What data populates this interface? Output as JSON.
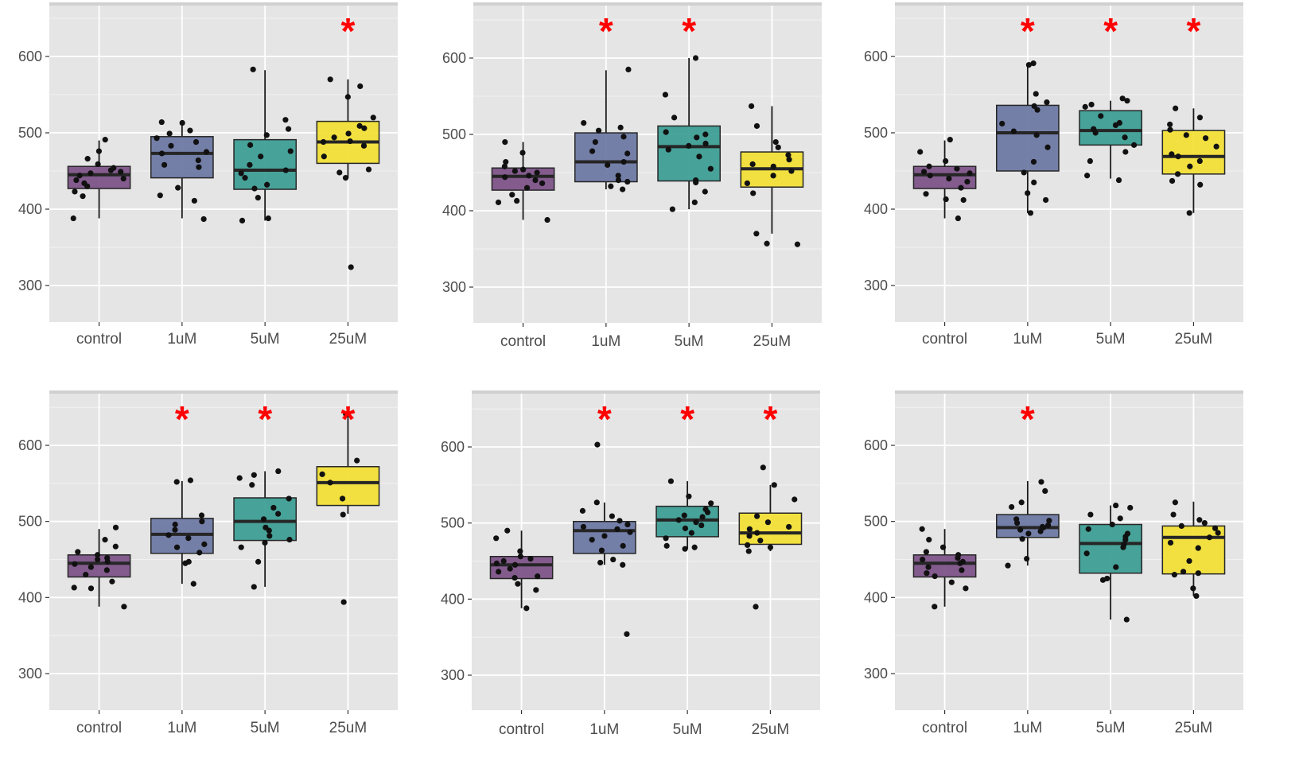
{
  "figure": {
    "colors": {
      "control": "#7b4f85",
      "1uM": "#6a76a3",
      "5uM": "#3a9c92",
      "25uM": "#f2e032",
      "star": "#ff0000",
      "panel_bg": "#e5e5e5",
      "grid": "#ffffff",
      "strip": "#d0d0d0"
    },
    "star_symbol": "*"
  },
  "chart_data": [
    {
      "type": "box",
      "categories": [
        "control",
        "1uM",
        "5uM",
        "25uM"
      ],
      "ylim": [
        255,
        665
      ],
      "yticks": [
        300,
        400,
        500,
        600
      ],
      "boxes": [
        {
          "q1": 427,
          "median": 445,
          "q3": 456,
          "wlo": 388,
          "whi": 490
        },
        {
          "q1": 441,
          "median": 473,
          "q3": 495,
          "wlo": 388,
          "whi": 514
        },
        {
          "q1": 426,
          "median": 451,
          "q3": 491,
          "wlo": 385,
          "whi": 582
        },
        {
          "q1": 460,
          "median": 488,
          "q3": 515,
          "wlo": 441,
          "whi": 570
        }
      ],
      "points": [
        [
          388,
          417,
          423,
          430,
          434,
          438,
          440,
          444,
          447,
          449,
          451,
          454,
          459,
          466,
          476,
          491
        ],
        [
          387,
          411,
          418,
          428,
          455,
          458,
          464,
          473,
          475,
          483,
          488,
          493,
          499,
          503,
          513,
          514
        ],
        [
          385,
          388,
          415,
          427,
          432,
          441,
          447,
          451,
          458,
          469,
          476,
          484,
          497,
          505,
          517,
          583
        ],
        [
          324,
          441,
          448,
          452,
          469,
          483,
          488,
          489,
          494,
          499,
          506,
          509,
          520,
          547,
          561,
          570
        ]
      ],
      "significant": [
        false,
        false,
        false,
        true
      ]
    },
    {
      "type": "box",
      "categories": [
        "control",
        "1uM",
        "5uM",
        "25uM"
      ],
      "ylim": [
        255,
        665
      ],
      "yticks": [
        300,
        400,
        500,
        600
      ],
      "boxes": [
        {
          "q1": 427,
          "median": 445,
          "q3": 456,
          "wlo": 388,
          "whi": 490
        },
        {
          "q1": 438,
          "median": 464,
          "q3": 502,
          "wlo": 428,
          "whi": 584
        },
        {
          "q1": 439,
          "median": 484,
          "q3": 511,
          "wlo": 402,
          "whi": 600
        },
        {
          "q1": 431,
          "median": 455,
          "q3": 477,
          "wlo": 370,
          "whi": 537
        }
      ],
      "points": [
        [
          388,
          411,
          413,
          421,
          430,
          436,
          440,
          444,
          446,
          450,
          452,
          454,
          458,
          464,
          476,
          490
        ],
        [
          428,
          432,
          438,
          440,
          446,
          460,
          464,
          475,
          478,
          490,
          497,
          505,
          509,
          515,
          585
        ],
        [
          402,
          411,
          425,
          437,
          440,
          455,
          471,
          480,
          485,
          488,
          496,
          500,
          503,
          522,
          552,
          600
        ],
        [
          356,
          357,
          370,
          423,
          436,
          446,
          452,
          458,
          461,
          467,
          473,
          483,
          490,
          511,
          537
        ]
      ],
      "significant": [
        false,
        true,
        true,
        false
      ]
    },
    {
      "type": "box",
      "categories": [
        "control",
        "1uM",
        "5uM",
        "25uM"
      ],
      "ylim": [
        255,
        665
      ],
      "yticks": [
        300,
        400,
        500,
        600
      ],
      "boxes": [
        {
          "q1": 427,
          "median": 445,
          "q3": 456,
          "wlo": 388,
          "whi": 490
        },
        {
          "q1": 450,
          "median": 500,
          "q3": 536,
          "wlo": 395,
          "whi": 591
        },
        {
          "q1": 484,
          "median": 503,
          "q3": 529,
          "wlo": 440,
          "whi": 542
        },
        {
          "q1": 446,
          "median": 469,
          "q3": 503,
          "wlo": 395,
          "whi": 532
        }
      ],
      "points": [
        [
          388,
          412,
          413,
          420,
          428,
          436,
          440,
          444,
          447,
          449,
          453,
          456,
          463,
          475,
          491
        ],
        [
          395,
          412,
          421,
          435,
          448,
          462,
          481,
          497,
          502,
          512,
          530,
          535,
          540,
          551,
          589,
          591
        ],
        [
          438,
          444,
          463,
          475,
          484,
          494,
          500,
          505,
          510,
          513,
          522,
          534,
          537,
          542,
          545
        ],
        [
          395,
          432,
          437,
          446,
          456,
          463,
          469,
          472,
          482,
          493,
          497,
          504,
          511,
          520,
          532
        ]
      ],
      "significant": [
        false,
        true,
        true,
        true
      ]
    },
    {
      "type": "box",
      "categories": [
        "control",
        "1uM",
        "5uM",
        "25uM"
      ],
      "ylim": [
        255,
        665
      ],
      "yticks": [
        300,
        400,
        500,
        600
      ],
      "boxes": [
        {
          "q1": 427,
          "median": 445,
          "q3": 456,
          "wlo": 388,
          "whi": 490
        },
        {
          "q1": 458,
          "median": 483,
          "q3": 504,
          "wlo": 418,
          "whi": 553
        },
        {
          "q1": 475,
          "median": 500,
          "q3": 531,
          "wlo": 414,
          "whi": 566
        },
        {
          "q1": 521,
          "median": 551,
          "q3": 572,
          "wlo": 510,
          "whi": 641
        }
      ],
      "points": [
        [
          388,
          412,
          413,
          421,
          430,
          436,
          440,
          444,
          447,
          450,
          452,
          456,
          460,
          467,
          476,
          492
        ],
        [
          418,
          445,
          447,
          459,
          466,
          470,
          478,
          482,
          489,
          496,
          500,
          508,
          552,
          554
        ],
        [
          414,
          447,
          466,
          472,
          476,
          481,
          488,
          492,
          503,
          510,
          518,
          530,
          548,
          557,
          561,
          566
        ],
        [
          394,
          509,
          530,
          551,
          562,
          580,
          641
        ]
      ],
      "significant": [
        false,
        true,
        true,
        true
      ]
    },
    {
      "type": "box",
      "categories": [
        "control",
        "1uM",
        "5uM",
        "25uM"
      ],
      "ylim": [
        255,
        665
      ],
      "yticks": [
        300,
        400,
        500,
        600
      ],
      "boxes": [
        {
          "q1": 427,
          "median": 445,
          "q3": 456,
          "wlo": 388,
          "whi": 490
        },
        {
          "q1": 460,
          "median": 490,
          "q3": 502,
          "wlo": 445,
          "whi": 527
        },
        {
          "q1": 482,
          "median": 504,
          "q3": 522,
          "wlo": 466,
          "whi": 555
        },
        {
          "q1": 472,
          "median": 487,
          "q3": 513,
          "wlo": 463,
          "whi": 550
        }
      ],
      "points": [
        [
          388,
          412,
          420,
          428,
          430,
          436,
          440,
          445,
          447,
          450,
          453,
          456,
          463,
          480,
          490
        ],
        [
          354,
          445,
          448,
          452,
          464,
          470,
          478,
          483,
          488,
          492,
          495,
          498,
          503,
          509,
          516,
          527,
          603
        ],
        [
          466,
          468,
          470,
          480,
          487,
          493,
          497,
          501,
          504,
          508,
          510,
          514,
          518,
          526,
          535,
          555
        ],
        [
          390,
          463,
          468,
          471,
          477,
          483,
          487,
          492,
          495,
          501,
          509,
          531,
          550,
          573
        ]
      ],
      "significant": [
        false,
        true,
        true,
        true
      ]
    },
    {
      "type": "box",
      "categories": [
        "control",
        "1uM",
        "5uM",
        "25uM"
      ],
      "ylim": [
        255,
        665
      ],
      "yticks": [
        300,
        400,
        500,
        600
      ],
      "boxes": [
        {
          "q1": 427,
          "median": 445,
          "q3": 456,
          "wlo": 388,
          "whi": 490
        },
        {
          "q1": 479,
          "median": 492,
          "q3": 509,
          "wlo": 442,
          "whi": 553
        },
        {
          "q1": 432,
          "median": 471,
          "q3": 496,
          "wlo": 371,
          "whi": 521
        },
        {
          "q1": 431,
          "median": 479,
          "q3": 494,
          "wlo": 402,
          "whi": 526
        }
      ],
      "points": [
        [
          388,
          412,
          420,
          428,
          432,
          436,
          440,
          445,
          447,
          450,
          452,
          456,
          460,
          466,
          476,
          490
        ],
        [
          442,
          451,
          477,
          484,
          487,
          489,
          492,
          493,
          495,
          498,
          501,
          503,
          519,
          525,
          540,
          552
        ],
        [
          371,
          423,
          425,
          440,
          458,
          466,
          470,
          476,
          480,
          484,
          490,
          496,
          504,
          509,
          518,
          521
        ],
        [
          402,
          412,
          430,
          432,
          434,
          448,
          465,
          472,
          479,
          485,
          491,
          494,
          498,
          502,
          509,
          525
        ]
      ],
      "significant": [
        false,
        true,
        false,
        false
      ]
    }
  ]
}
